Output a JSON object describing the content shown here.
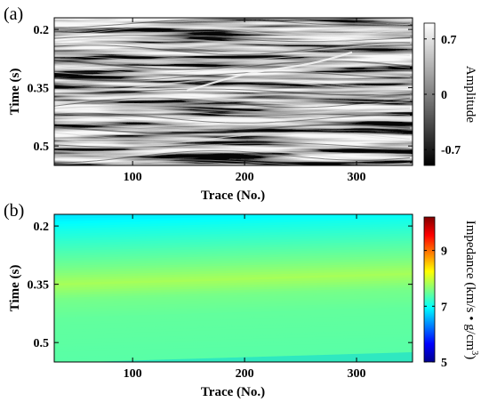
{
  "chart_data": [
    {
      "type": "heatmap",
      "panel_label": "(a)",
      "description_kind": "seismic section",
      "xlabel": "Trace (No.)",
      "ylabel": "Time (s)",
      "xlim": [
        30,
        350
      ],
      "ylim": [
        0.55,
        0.17
      ],
      "xticks": [
        100,
        200,
        300
      ],
      "yticks": [
        0.2,
        0.35,
        0.5
      ],
      "xtick_labels": [
        "100",
        "200",
        "300"
      ],
      "ytick_labels": [
        "0.2",
        "0.35",
        "0.5"
      ],
      "colorbar": {
        "label": "Amplitude",
        "range": [
          -0.9,
          0.9
        ],
        "ticks": [
          0.7,
          0,
          -0.7
        ],
        "tick_labels": [
          "0.7",
          "0",
          "-0.7"
        ],
        "colormap": "gray",
        "colors": [
          "#000000",
          "#ffffff"
        ]
      },
      "grid": false
    },
    {
      "type": "heatmap",
      "panel_label": "(b)",
      "xlabel": "Trace (No.)",
      "ylabel": "Time (s)",
      "xlim": [
        30,
        350
      ],
      "ylim": [
        0.55,
        0.17
      ],
      "xticks": [
        100,
        200,
        300
      ],
      "yticks": [
        0.2,
        0.35,
        0.5
      ],
      "xtick_labels": [
        "100",
        "200",
        "300"
      ],
      "ytick_labels": [
        "0.2",
        "0.35",
        "0.5"
      ],
      "colorbar": {
        "label_main": "Impedance (km/s • g/cm",
        "label_sup": "3",
        "label_close": ")",
        "range": [
          5,
          10.2
        ],
        "ticks": [
          9,
          7,
          5
        ],
        "tick_labels": [
          "9",
          "7",
          "5"
        ],
        "colormap": "jet",
        "colors": [
          "#00008f",
          "#0000ff",
          "#00ffff",
          "#ffff00",
          "#ff0000",
          "#800000"
        ]
      },
      "impedance_profile": {
        "time": [
          0.17,
          0.21,
          0.26,
          0.31,
          0.35,
          0.39,
          0.44,
          0.55
        ],
        "impedance": [
          6.8,
          7.05,
          7.3,
          7.55,
          7.8,
          7.55,
          7.45,
          7.4
        ]
      },
      "grid": false
    }
  ]
}
